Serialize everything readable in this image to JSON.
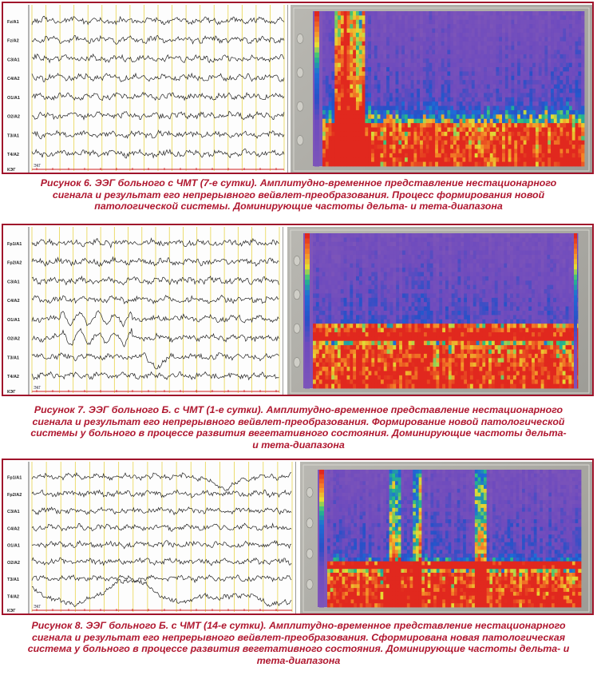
{
  "figures": [
    {
      "channels": [
        "Fz/A1",
        "Fz/A2",
        "C3/A1",
        "C4/A2",
        "O1/A1",
        "O2/A2",
        "T3/A1",
        "T4/A2"
      ],
      "marker_label": "ЭКГ",
      "caption": "Рисунок 6. ЭЭГ больного с ЧМТ (7-е сутки). Амплитудно-временное представление нестационарного\nсигнала и результат его непрерывного вейвлет-преобразования. Процесс формирования новой\nпатологической системы. Доминирующие частоты дельта- и тета-диапазона"
    },
    {
      "channels": [
        "Fp1/A1",
        "Fp2/A2",
        "C3/A1",
        "C4/A2",
        "O1/A1",
        "O2/A2",
        "T3/A1",
        "T4/A2"
      ],
      "marker_label": "ЭКГ",
      "caption": "Рисунок 7. ЭЭГ больного Б. с ЧМТ (1-е сутки). Амплитудно-временное представление нестационарного\nсигнала и результат его непрерывного вейвлет-преобразования. Формирование новой патологической\nсистемы у больного в процессе развития вегетативного состояния. Доминирующие частоты дельта-\nи тета-диапазона"
    },
    {
      "channels": [
        "Fp1/A1",
        "Fp2/A2",
        "C3/A1",
        "C4/A2",
        "O1/A1",
        "O2/A2",
        "T3/A1",
        "T4/A2"
      ],
      "marker_label": "ЭКГ",
      "caption": "Рисунок 8. ЭЭГ больного Б. с ЧМТ (14-е сутки). Амплитудно-временное представление нестационарного\nсигнала и результат его непрерывного вейвлет-преобразования. Сформирована новая патологическая\nсистема у больного в процессе развития вегетативного состояния. Доминирующие частоты дельта- и\nтета-диапазона"
    }
  ],
  "colors": {
    "frame": "#a0142b",
    "caption": "#b01830",
    "grid": "#e8d44d",
    "trace": "#222222",
    "marker": "#d02020",
    "spectro_low": "#e02a1f",
    "spectro_mid": "#1f4fc0",
    "spectro_high": "#7f55b8",
    "spectro_accent": "#2ec46b"
  }
}
